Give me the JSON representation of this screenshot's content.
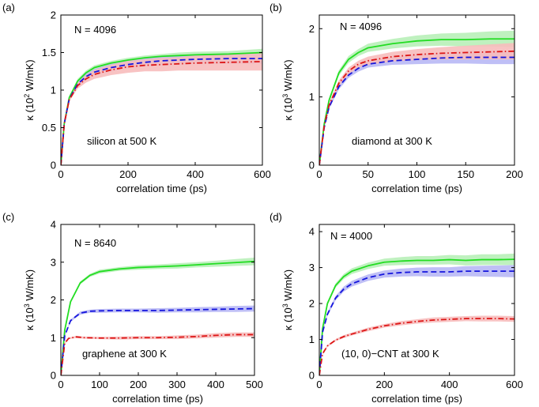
{
  "colors": {
    "green": "#22dd22",
    "blue": "#1515dd",
    "red": "#dd1515",
    "green_band": "#b8f0b8",
    "blue_band": "#b8b8f5",
    "red_band": "#f7bcbc"
  },
  "chart_data": [
    {
      "panel": "(a)",
      "type": "line",
      "xlabel": "correlation time (ps)",
      "ylabel_prefix": "κ (10",
      "ylabel_exp": "2",
      "ylabel_suffix": " W/mK)",
      "xlim": [
        0,
        600
      ],
      "ylim": [
        0,
        2
      ],
      "xticks": [
        0,
        200,
        400,
        600
      ],
      "yticks": [
        0,
        0.5,
        1,
        1.5,
        2
      ],
      "annotation_top": "N = 4096",
      "annotation_bottom": "silicon at 500 K",
      "series": [
        {
          "style": "solid",
          "color": "green",
          "x": [
            0,
            10,
            25,
            50,
            75,
            100,
            150,
            200,
            250,
            300,
            350,
            400,
            500,
            600
          ],
          "y": [
            0,
            0.55,
            0.9,
            1.12,
            1.23,
            1.3,
            1.36,
            1.4,
            1.43,
            1.45,
            1.46,
            1.47,
            1.48,
            1.5
          ],
          "band": [
            0,
            0.01,
            0.02,
            0.03,
            0.03,
            0.03,
            0.03,
            0.03,
            0.03,
            0.03,
            0.04,
            0.04,
            0.04,
            0.05
          ]
        },
        {
          "style": "dashed",
          "color": "blue",
          "x": [
            0,
            10,
            25,
            50,
            75,
            100,
            150,
            200,
            250,
            300,
            350,
            400,
            500,
            600
          ],
          "y": [
            0,
            0.55,
            0.88,
            1.08,
            1.18,
            1.24,
            1.3,
            1.34,
            1.37,
            1.39,
            1.4,
            1.41,
            1.42,
            1.42
          ],
          "band": [
            0,
            0.01,
            0.02,
            0.03,
            0.04,
            0.04,
            0.05,
            0.05,
            0.05,
            0.06,
            0.06,
            0.06,
            0.07,
            0.07
          ]
        },
        {
          "style": "dashdot",
          "color": "red",
          "x": [
            0,
            10,
            25,
            50,
            75,
            100,
            150,
            200,
            250,
            300,
            350,
            400,
            500,
            600
          ],
          "y": [
            0,
            0.55,
            0.87,
            1.06,
            1.15,
            1.21,
            1.27,
            1.31,
            1.33,
            1.34,
            1.35,
            1.36,
            1.37,
            1.38
          ],
          "band": [
            0,
            0.01,
            0.02,
            0.04,
            0.05,
            0.06,
            0.07,
            0.08,
            0.08,
            0.09,
            0.09,
            0.1,
            0.11,
            0.12
          ]
        }
      ]
    },
    {
      "panel": "(b)",
      "type": "line",
      "xlabel": "correlation time (ps)",
      "ylabel_prefix": "κ (10",
      "ylabel_exp": "3",
      "ylabel_suffix": " W/mK)",
      "xlim": [
        0,
        200
      ],
      "ylim": [
        0,
        2.2
      ],
      "xticks": [
        0,
        50,
        100,
        150,
        200
      ],
      "yticks": [
        0,
        1,
        2
      ],
      "annotation_top": "N = 4096",
      "annotation_bottom": "diamond at 300 K",
      "series": [
        {
          "style": "solid",
          "color": "green",
          "x": [
            0,
            5,
            10,
            20,
            30,
            40,
            50,
            75,
            100,
            125,
            150,
            175,
            200
          ],
          "y": [
            0,
            0.6,
            0.95,
            1.35,
            1.55,
            1.65,
            1.72,
            1.78,
            1.82,
            1.84,
            1.84,
            1.85,
            1.85
          ],
          "band": [
            0,
            0.02,
            0.03,
            0.04,
            0.05,
            0.05,
            0.06,
            0.07,
            0.08,
            0.09,
            0.1,
            0.11,
            0.12
          ]
        },
        {
          "style": "dashed",
          "color": "blue",
          "x": [
            0,
            5,
            10,
            20,
            30,
            40,
            50,
            75,
            100,
            125,
            150,
            175,
            200
          ],
          "y": [
            0,
            0.55,
            0.85,
            1.15,
            1.32,
            1.42,
            1.48,
            1.53,
            1.55,
            1.57,
            1.58,
            1.58,
            1.58
          ],
          "band": [
            0,
            0.02,
            0.03,
            0.04,
            0.04,
            0.05,
            0.05,
            0.06,
            0.07,
            0.08,
            0.09,
            0.1,
            0.1
          ]
        },
        {
          "style": "dashdot",
          "color": "red",
          "x": [
            0,
            5,
            10,
            20,
            30,
            40,
            50,
            75,
            100,
            125,
            150,
            175,
            200
          ],
          "y": [
            0,
            0.57,
            0.88,
            1.2,
            1.38,
            1.48,
            1.53,
            1.59,
            1.62,
            1.64,
            1.65,
            1.66,
            1.67
          ],
          "band": [
            0,
            0.02,
            0.03,
            0.04,
            0.05,
            0.05,
            0.06,
            0.07,
            0.08,
            0.09,
            0.1,
            0.11,
            0.12
          ]
        }
      ]
    },
    {
      "panel": "(c)",
      "type": "line",
      "xlabel": "correlation time (ps)",
      "ylabel_prefix": "κ (10",
      "ylabel_exp": "3",
      "ylabel_suffix": " W/mK)",
      "xlim": [
        0,
        500
      ],
      "ylim": [
        0,
        4
      ],
      "xticks": [
        0,
        100,
        200,
        300,
        400,
        500
      ],
      "yticks": [
        0,
        1,
        2,
        3,
        4
      ],
      "annotation_top": "N = 8640",
      "annotation_bottom": "graphene at 300 K",
      "series": [
        {
          "style": "solid",
          "color": "green",
          "x": [
            0,
            10,
            25,
            50,
            75,
            100,
            150,
            200,
            250,
            300,
            350,
            400,
            450,
            500
          ],
          "y": [
            0,
            1.2,
            1.95,
            2.45,
            2.65,
            2.75,
            2.82,
            2.86,
            2.88,
            2.9,
            2.93,
            2.96,
            2.99,
            3.02
          ],
          "band": [
            0,
            0.02,
            0.03,
            0.04,
            0.04,
            0.05,
            0.05,
            0.06,
            0.06,
            0.07,
            0.07,
            0.08,
            0.09,
            0.1
          ]
        },
        {
          "style": "dashed",
          "color": "blue",
          "x": [
            0,
            10,
            25,
            50,
            75,
            100,
            150,
            200,
            250,
            300,
            350,
            400,
            450,
            500
          ],
          "y": [
            0,
            1.05,
            1.45,
            1.65,
            1.7,
            1.71,
            1.72,
            1.72,
            1.72,
            1.73,
            1.74,
            1.75,
            1.76,
            1.77
          ],
          "band": [
            0,
            0.02,
            0.03,
            0.04,
            0.04,
            0.05,
            0.05,
            0.05,
            0.06,
            0.06,
            0.07,
            0.07,
            0.08,
            0.08
          ]
        },
        {
          "style": "dashdot",
          "color": "red",
          "x": [
            0,
            10,
            20,
            40,
            60,
            100,
            150,
            200,
            250,
            300,
            350,
            400,
            450,
            500
          ],
          "y": [
            0,
            0.85,
            0.98,
            1.02,
            1.0,
            0.99,
            0.99,
            1.0,
            1.0,
            1.01,
            1.03,
            1.06,
            1.08,
            1.08
          ],
          "band": [
            0,
            0.02,
            0.02,
            0.03,
            0.03,
            0.03,
            0.04,
            0.04,
            0.04,
            0.05,
            0.05,
            0.06,
            0.06,
            0.06
          ]
        }
      ]
    },
    {
      "panel": "(d)",
      "type": "line",
      "xlabel": "correlation time (ps)",
      "ylabel_prefix": "κ (10",
      "ylabel_exp": "3",
      "ylabel_suffix": " W/mK)",
      "xlim": [
        0,
        600
      ],
      "ylim": [
        0,
        4.2
      ],
      "xticks": [
        0,
        200,
        400,
        600
      ],
      "yticks": [
        0,
        1,
        2,
        3,
        4
      ],
      "annotation_top": "N = 4000",
      "annotation_bottom": "(10, 0)−CNT at 300 K",
      "series": [
        {
          "style": "solid",
          "color": "green",
          "x": [
            0,
            10,
            25,
            50,
            75,
            100,
            150,
            200,
            250,
            300,
            350,
            400,
            450,
            500,
            550,
            600
          ],
          "y": [
            0,
            1.3,
            2.0,
            2.5,
            2.75,
            2.9,
            3.05,
            3.15,
            3.18,
            3.2,
            3.2,
            3.22,
            3.2,
            3.22,
            3.22,
            3.23
          ],
          "band": [
            0,
            0.03,
            0.05,
            0.06,
            0.07,
            0.08,
            0.09,
            0.1,
            0.11,
            0.12,
            0.12,
            0.13,
            0.14,
            0.15,
            0.15,
            0.16
          ]
        },
        {
          "style": "dashed",
          "color": "blue",
          "x": [
            0,
            10,
            25,
            50,
            75,
            100,
            150,
            200,
            250,
            300,
            350,
            400,
            450,
            500,
            550,
            600
          ],
          "y": [
            0,
            1.2,
            1.7,
            2.15,
            2.4,
            2.55,
            2.72,
            2.82,
            2.86,
            2.88,
            2.88,
            2.88,
            2.9,
            2.9,
            2.9,
            2.9
          ],
          "band": [
            0,
            0.03,
            0.05,
            0.06,
            0.07,
            0.08,
            0.09,
            0.1,
            0.11,
            0.12,
            0.13,
            0.13,
            0.14,
            0.15,
            0.16,
            0.17
          ]
        },
        {
          "style": "dashdot",
          "color": "red",
          "x": [
            0,
            10,
            25,
            50,
            75,
            100,
            150,
            200,
            250,
            300,
            350,
            400,
            450,
            500,
            550,
            600
          ],
          "y": [
            0,
            0.6,
            0.82,
            0.98,
            1.08,
            1.15,
            1.28,
            1.38,
            1.45,
            1.5,
            1.54,
            1.56,
            1.58,
            1.58,
            1.58,
            1.57
          ],
          "band": [
            0,
            0.02,
            0.03,
            0.03,
            0.04,
            0.04,
            0.05,
            0.05,
            0.06,
            0.06,
            0.07,
            0.07,
            0.07,
            0.08,
            0.08,
            0.08
          ]
        }
      ]
    }
  ]
}
